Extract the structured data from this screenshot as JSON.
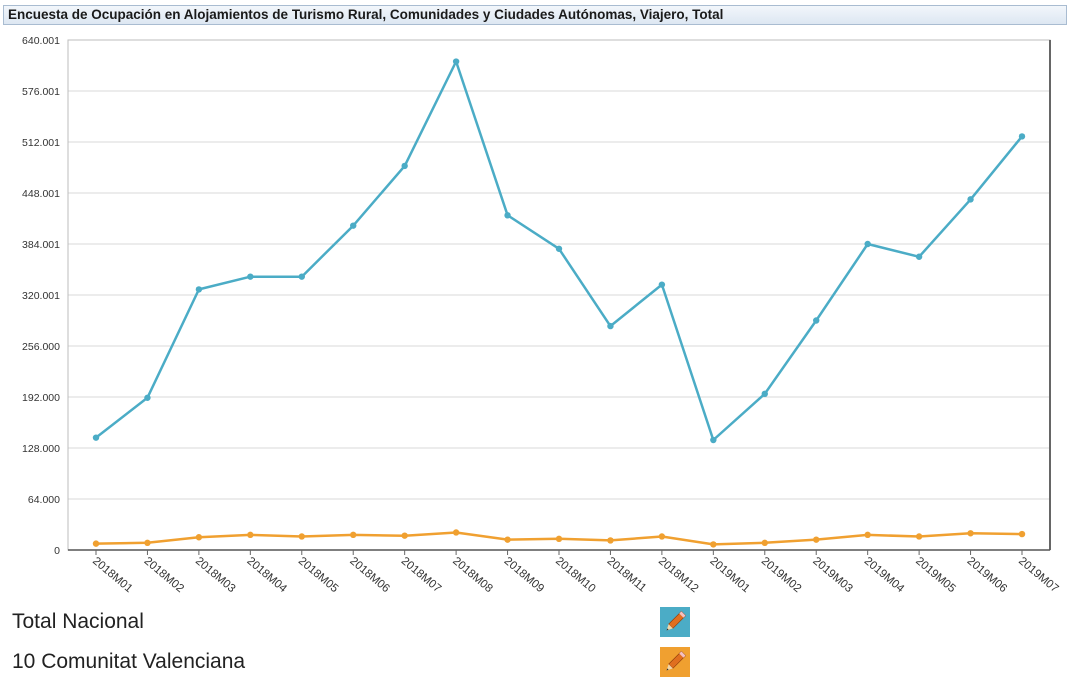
{
  "title": "Encuesta de Ocupación en Alojamientos de Turismo Rural, Comunidades y Ciudades Autónomas, Viajero, Total",
  "chart_data": {
    "type": "line",
    "categories": [
      "2018M01",
      "2018M02",
      "2018M03",
      "2018M04",
      "2018M05",
      "2018M06",
      "2018M07",
      "2018M08",
      "2018M09",
      "2018M10",
      "2018M11",
      "2018M12",
      "2019M01",
      "2019M02",
      "2019M03",
      "2019M04",
      "2019M05",
      "2019M06",
      "2019M07"
    ],
    "series": [
      {
        "name": "Total Nacional",
        "color": "#4bacc6",
        "values": [
          141000,
          191000,
          327000,
          343000,
          343000,
          407000,
          482000,
          613000,
          420000,
          378000,
          281000,
          333000,
          138000,
          196000,
          288000,
          384000,
          368000,
          440000,
          519000
        ]
      },
      {
        "name": "10 Comunitat Valenciana",
        "color": "#f0a030",
        "values": [
          8000,
          9000,
          16000,
          19000,
          17000,
          19000,
          18000,
          22000,
          13000,
          14000,
          12000,
          17000,
          7000,
          9000,
          13000,
          19000,
          17000,
          21000,
          20000
        ]
      }
    ],
    "y_ticks": [
      "0",
      "64.000",
      "128.000",
      "192.000",
      "256.000",
      "320.001",
      "384.001",
      "448.001",
      "512.001",
      "576.001",
      "640.001"
    ],
    "ylim": [
      0,
      640001
    ],
    "grid": true
  },
  "legend": [
    {
      "label": "Total Nacional",
      "color": "#4bacc6",
      "icon": "pencil-icon"
    },
    {
      "label": "10 Comunitat Valenciana",
      "color": "#f0a030",
      "icon": "pencil-icon"
    }
  ]
}
